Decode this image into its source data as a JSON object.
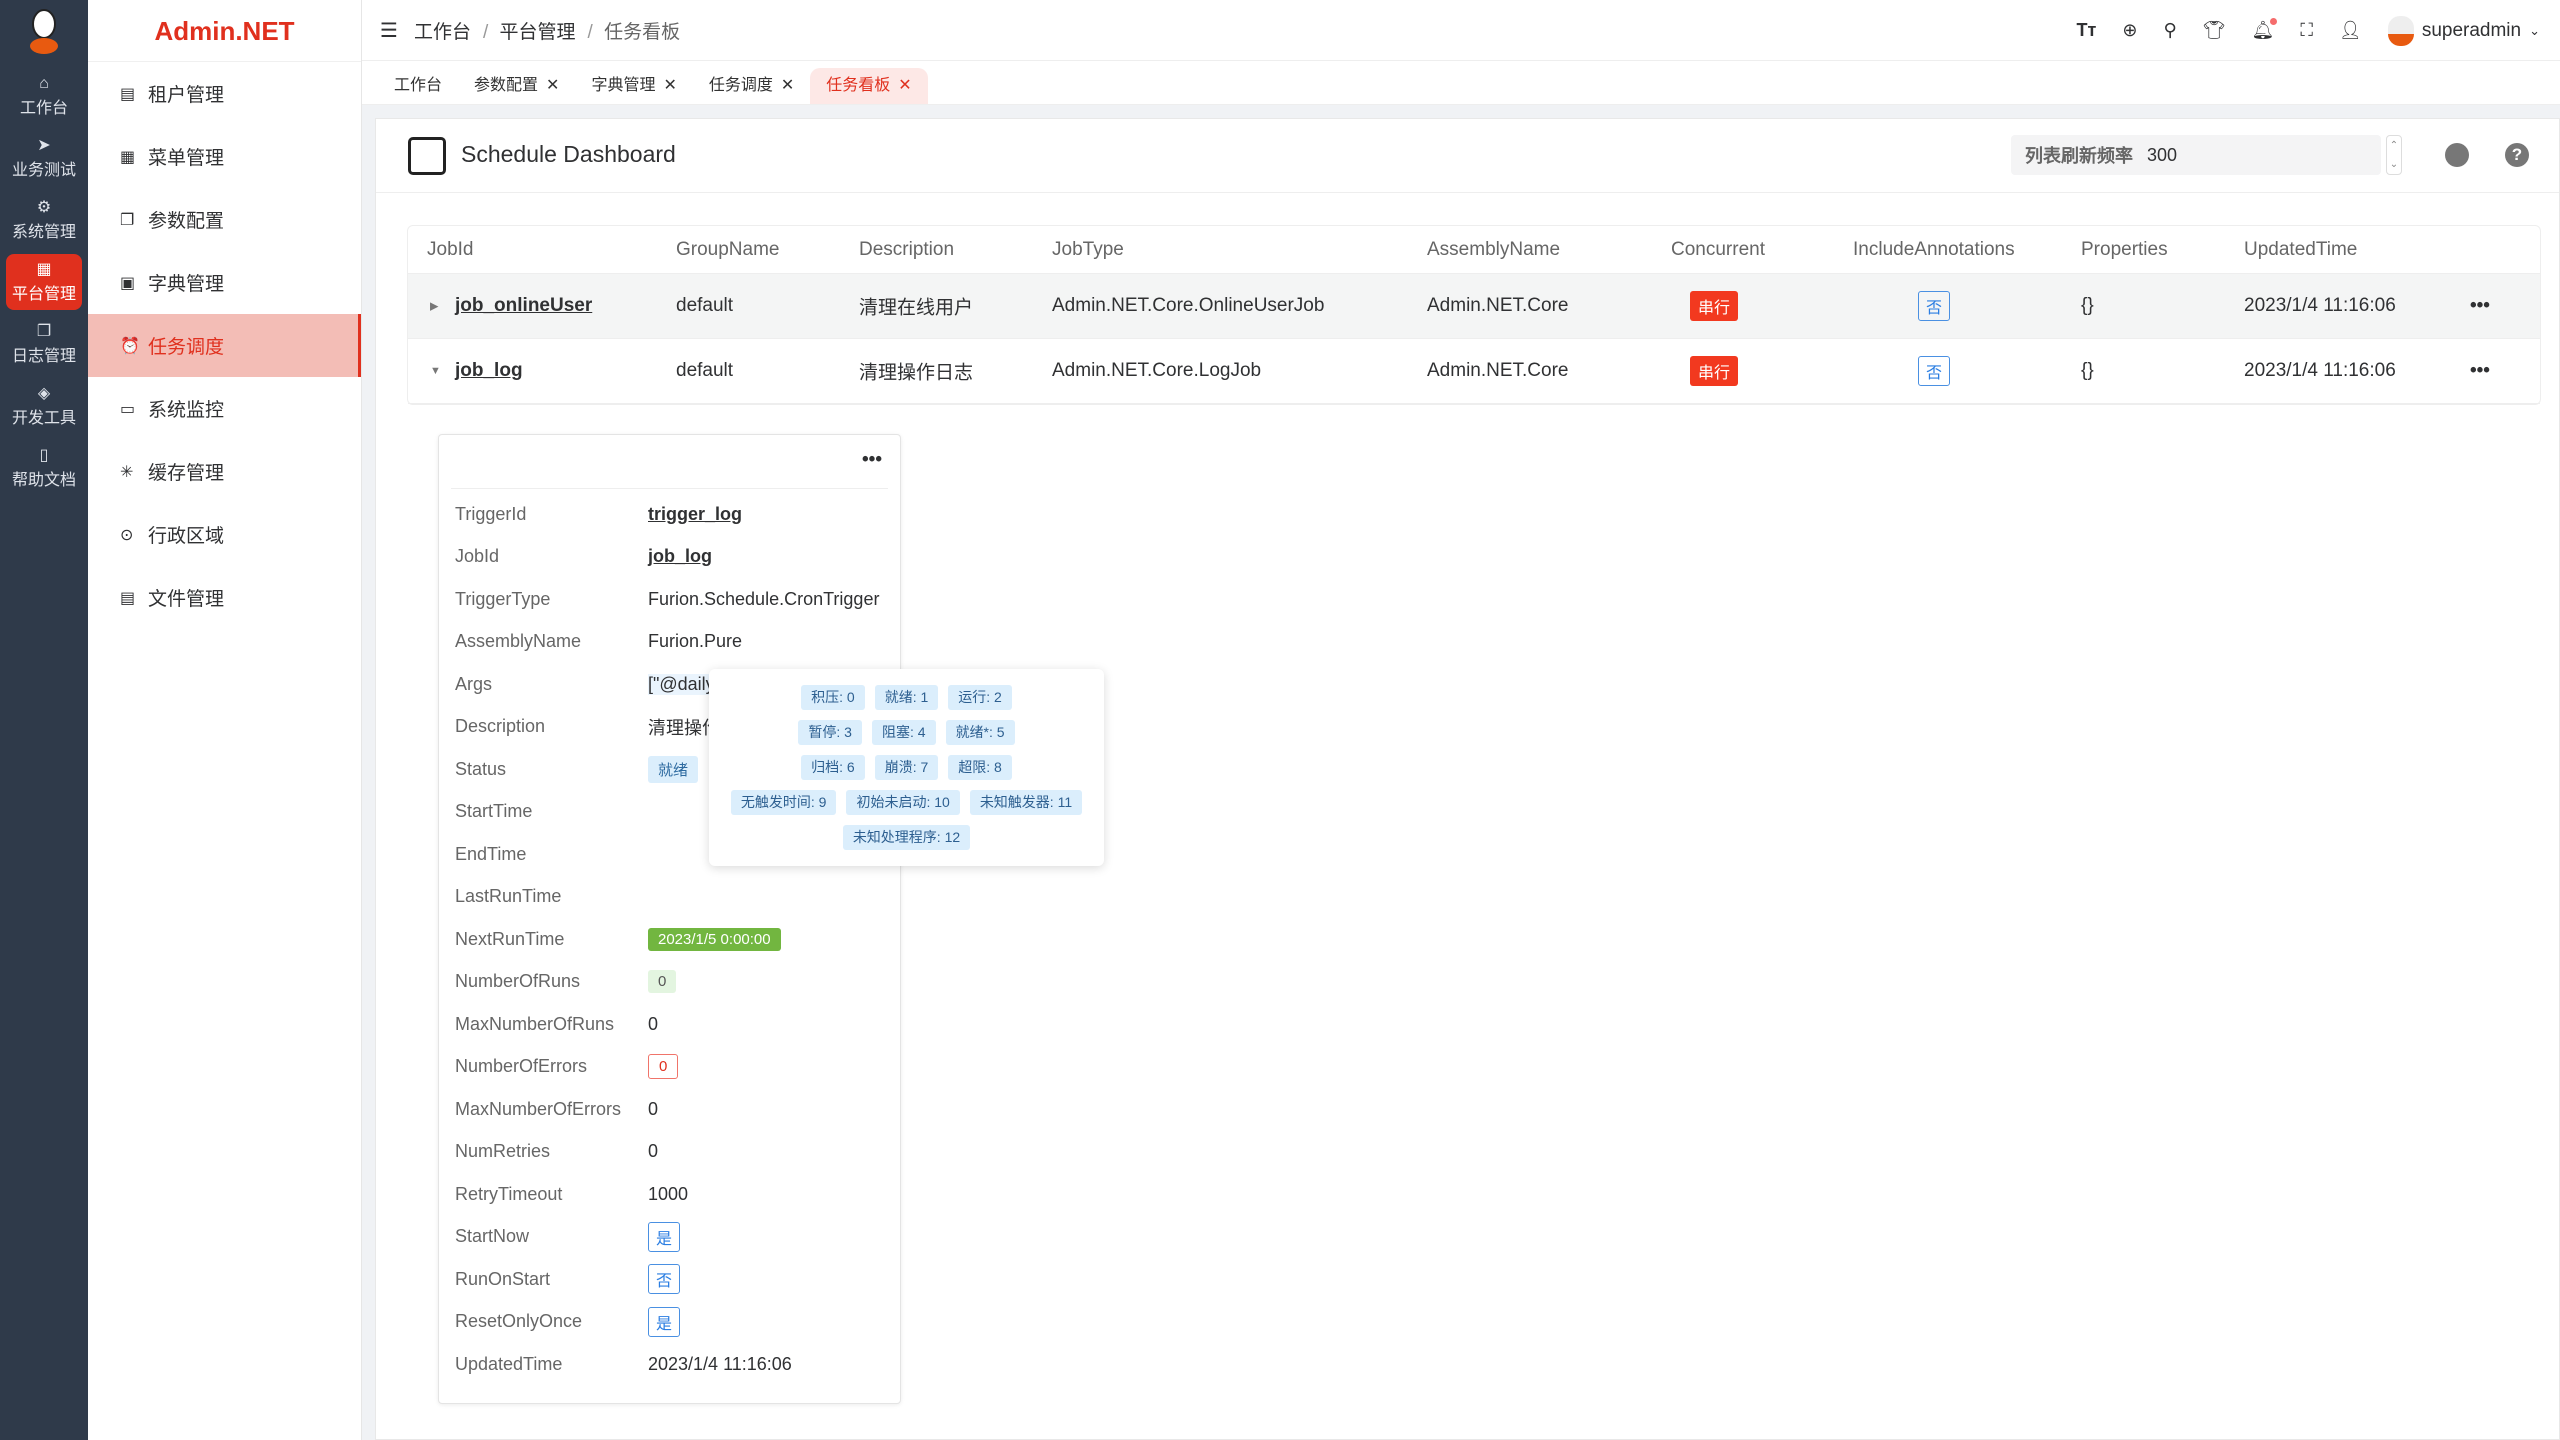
{
  "brand": "Admin.NET",
  "rail": [
    {
      "label": "工作台",
      "icon": "home-icon"
    },
    {
      "label": "业务测试",
      "icon": "send-icon"
    },
    {
      "label": "系统管理",
      "icon": "gear-icon"
    },
    {
      "label": "平台管理",
      "icon": "grid-icon"
    },
    {
      "label": "日志管理",
      "icon": "copy-icon"
    },
    {
      "label": "开发工具",
      "icon": "chip-icon"
    },
    {
      "label": "帮助文档",
      "icon": "book-icon"
    }
  ],
  "sidebar": [
    {
      "label": "租户管理"
    },
    {
      "label": "菜单管理"
    },
    {
      "label": "参数配置"
    },
    {
      "label": "字典管理"
    },
    {
      "label": "任务调度"
    },
    {
      "label": "系统监控"
    },
    {
      "label": "缓存管理"
    },
    {
      "label": "行政区域"
    },
    {
      "label": "文件管理"
    }
  ],
  "breadcrumb": [
    "工作台",
    "平台管理",
    "任务看板"
  ],
  "user": "superadmin",
  "tabs": [
    "工作台",
    "参数配置",
    "字典管理",
    "任务调度",
    "任务看板"
  ],
  "page": {
    "title": "Schedule Dashboard",
    "freq_label": "列表刷新频率",
    "freq_value": "300"
  },
  "table": {
    "headers": [
      "JobId",
      "GroupName",
      "Description",
      "JobType",
      "AssemblyName",
      "Concurrent",
      "IncludeAnnotations",
      "Properties",
      "UpdatedTime"
    ],
    "rows": [
      {
        "jobId": "job_onlineUser",
        "group": "default",
        "desc": "清理在线用户",
        "type": "Admin.NET.Core.OnlineUserJob",
        "assembly": "Admin.NET.Core",
        "concurrent": "串行",
        "annotations": "否",
        "props": "{}",
        "updated": "2023/1/4 11:16:06",
        "expanded": false
      },
      {
        "jobId": "job_log",
        "group": "default",
        "desc": "清理操作日志",
        "type": "Admin.NET.Core.LogJob",
        "assembly": "Admin.NET.Core",
        "concurrent": "串行",
        "annotations": "否",
        "props": "{}",
        "updated": "2023/1/4 11:16:06",
        "expanded": true
      }
    ]
  },
  "trigger": [
    {
      "k": "TriggerId",
      "v": "trigger_log"
    },
    {
      "k": "JobId",
      "v": "job_log"
    },
    {
      "k": "TriggerType",
      "v": "Furion.Schedule.CronTrigger"
    },
    {
      "k": "AssemblyName",
      "v": "Furion.Pure"
    },
    {
      "k": "Args",
      "v": "[\"@daily"
    },
    {
      "k": "Description",
      "v": "清理操作"
    },
    {
      "k": "Status",
      "v": "就绪"
    },
    {
      "k": "StartTime",
      "v": ""
    },
    {
      "k": "EndTime",
      "v": ""
    },
    {
      "k": "LastRunTime",
      "v": ""
    },
    {
      "k": "NextRunTime",
      "v": "2023/1/5 0:00:00"
    },
    {
      "k": "NumberOfRuns",
      "v": "0"
    },
    {
      "k": "MaxNumberOfRuns",
      "v": "0"
    },
    {
      "k": "NumberOfErrors",
      "v": "0"
    },
    {
      "k": "MaxNumberOfErrors",
      "v": "0"
    },
    {
      "k": "NumRetries",
      "v": "0"
    },
    {
      "k": "RetryTimeout",
      "v": "1000"
    },
    {
      "k": "StartNow",
      "v": "是"
    },
    {
      "k": "RunOnStart",
      "v": "否"
    },
    {
      "k": "ResetOnlyOnce",
      "v": "是"
    },
    {
      "k": "UpdatedTime",
      "v": "2023/1/4 11:16:06"
    }
  ],
  "status_popup": [
    [
      "积压: 0",
      "就绪: 1",
      "运行: 2"
    ],
    [
      "暂停: 3",
      "阻塞: 4",
      "就绪*: 5"
    ],
    [
      "归档: 6",
      "崩溃: 7",
      "超限: 8"
    ],
    [
      "无触发时间: 9",
      "初始未启动: 10",
      "未知触发器: 11"
    ],
    [
      "未知处理程序: 12"
    ]
  ],
  "colors": {
    "accent": "#e0301e",
    "rail": "#2f3a4a",
    "next_run": "#72b640"
  }
}
